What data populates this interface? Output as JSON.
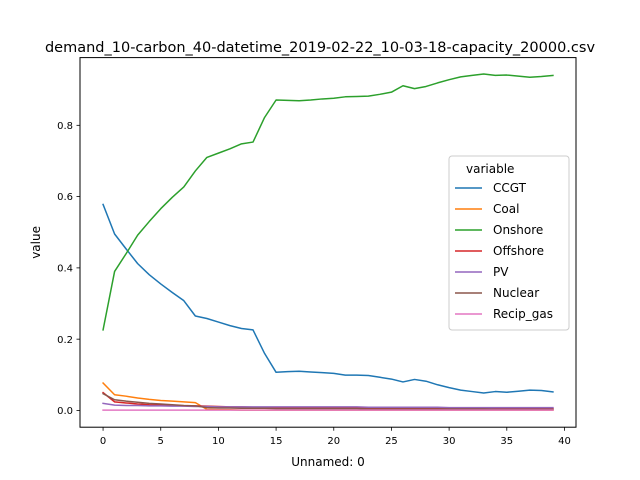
{
  "chart_data": {
    "type": "line",
    "title": "demand_10-carbon_40-datetime_2019-02-22_10-03-18-capacity_20000.csv",
    "xlabel": "Unnamed: 0",
    "ylabel": "value",
    "xlim": [
      -2,
      41
    ],
    "ylim": [
      -0.047,
      0.99
    ],
    "xticks": [
      0,
      5,
      10,
      15,
      20,
      25,
      30,
      35,
      40
    ],
    "yticks": [
      0.0,
      0.2,
      0.4,
      0.6,
      0.8
    ],
    "ytick_labels": [
      "0.0",
      "0.2",
      "0.4",
      "0.6",
      "0.8"
    ],
    "grid": false,
    "legend": {
      "title": "variable",
      "position": "center-right"
    },
    "x": [
      0,
      1,
      2,
      3,
      4,
      5,
      6,
      7,
      8,
      9,
      10,
      11,
      12,
      13,
      14,
      15,
      16,
      17,
      18,
      19,
      20,
      21,
      22,
      23,
      24,
      25,
      26,
      27,
      28,
      29,
      30,
      31,
      32,
      33,
      34,
      35,
      36,
      37,
      38,
      39
    ],
    "series": [
      {
        "name": "CCGT",
        "color": "#1f77b4",
        "values": [
          0.578,
          0.495,
          0.453,
          0.412,
          0.381,
          0.355,
          0.331,
          0.308,
          0.265,
          0.258,
          0.248,
          0.238,
          0.23,
          0.226,
          0.16,
          0.107,
          0.109,
          0.11,
          0.108,
          0.106,
          0.104,
          0.099,
          0.099,
          0.098,
          0.093,
          0.088,
          0.08,
          0.087,
          0.082,
          0.072,
          0.064,
          0.057,
          0.053,
          0.049,
          0.053,
          0.051,
          0.054,
          0.057,
          0.056,
          0.052
        ]
      },
      {
        "name": "Coal",
        "color": "#ff7f0e",
        "values": [
          0.077,
          0.044,
          0.04,
          0.035,
          0.031,
          0.028,
          0.026,
          0.024,
          0.022,
          0.003,
          0.002,
          0.002,
          0.001,
          0.001,
          0.001,
          0.001,
          0.001,
          0.001,
          0.001,
          0.001,
          0.001,
          0.001,
          0.001,
          0.001,
          0.001,
          0.001,
          0.001,
          0.001,
          0.001,
          0.001,
          0.001,
          0.001,
          0.001,
          0.001,
          0.001,
          0.001,
          0.001,
          0.001,
          0.001,
          0.001
        ]
      },
      {
        "name": "Onshore",
        "color": "#2ca02c",
        "values": [
          0.226,
          0.39,
          0.44,
          0.492,
          0.53,
          0.566,
          0.598,
          0.627,
          0.672,
          0.71,
          0.722,
          0.734,
          0.748,
          0.753,
          0.822,
          0.871,
          0.87,
          0.869,
          0.871,
          0.874,
          0.876,
          0.88,
          0.881,
          0.882,
          0.887,
          0.893,
          0.911,
          0.903,
          0.909,
          0.919,
          0.928,
          0.936,
          0.94,
          0.944,
          0.94,
          0.941,
          0.938,
          0.935,
          0.937,
          0.94
        ]
      },
      {
        "name": "Offshore",
        "color": "#d62728",
        "values": [
          0.05,
          0.024,
          0.021,
          0.018,
          0.016,
          0.015,
          0.014,
          0.013,
          0.013,
          0.012,
          0.011,
          0.01,
          0.01,
          0.009,
          0.009,
          0.008,
          0.008,
          0.008,
          0.008,
          0.008,
          0.008,
          0.008,
          0.007,
          0.007,
          0.007,
          0.006,
          0.006,
          0.006,
          0.006,
          0.005,
          0.005,
          0.005,
          0.005,
          0.005,
          0.005,
          0.005,
          0.005,
          0.005,
          0.005,
          0.005
        ]
      },
      {
        "name": "PV",
        "color": "#9467bd",
        "values": [
          0.02,
          0.015,
          0.014,
          0.014,
          0.013,
          0.013,
          0.012,
          0.012,
          0.011,
          0.011,
          0.01,
          0.01,
          0.01,
          0.01,
          0.01,
          0.01,
          0.01,
          0.01,
          0.01,
          0.01,
          0.01,
          0.01,
          0.01,
          0.009,
          0.009,
          0.009,
          0.009,
          0.009,
          0.009,
          0.009,
          0.008,
          0.008,
          0.008,
          0.008,
          0.008,
          0.008,
          0.008,
          0.008,
          0.008,
          0.008
        ]
      },
      {
        "name": "Nuclear",
        "color": "#8c564b",
        "values": [
          0.047,
          0.03,
          0.026,
          0.023,
          0.02,
          0.018,
          0.016,
          0.014,
          0.013,
          0.008,
          0.007,
          0.007,
          0.006,
          0.006,
          0.006,
          0.005,
          0.005,
          0.005,
          0.005,
          0.005,
          0.005,
          0.005,
          0.005,
          0.004,
          0.004,
          0.004,
          0.004,
          0.004,
          0.004,
          0.004,
          0.004,
          0.004,
          0.004,
          0.004,
          0.003,
          0.003,
          0.003,
          0.003,
          0.003,
          0.003
        ]
      },
      {
        "name": "Recip_gas",
        "color": "#e377c2",
        "values": [
          0.001,
          0.001,
          0.001,
          0.001,
          0.001,
          0.001,
          0.001,
          0.001,
          0.001,
          0.001,
          0.001,
          0.001,
          0.001,
          0.001,
          0.001,
          0.001,
          0.001,
          0.001,
          0.001,
          0.001,
          0.001,
          0.001,
          0.001,
          0.001,
          0.001,
          0.001,
          0.001,
          0.001,
          0.001,
          0.001,
          0.001,
          0.001,
          0.001,
          0.001,
          0.001,
          0.001,
          0.001,
          0.001,
          0.001,
          0.001
        ]
      }
    ]
  }
}
